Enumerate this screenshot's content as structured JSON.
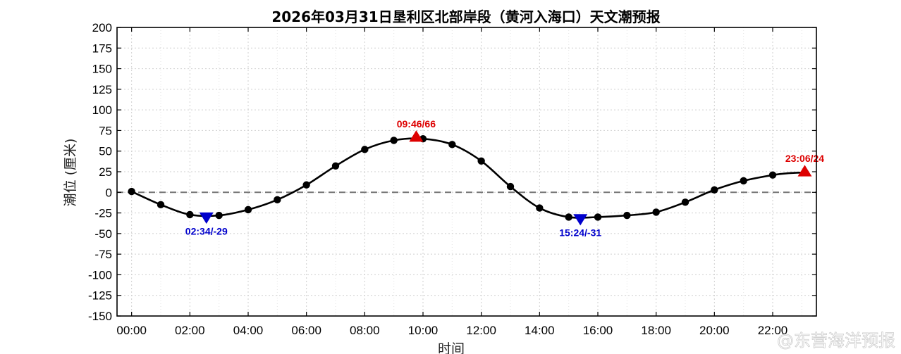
{
  "chart_data": {
    "type": "line",
    "title": "2026年03月31日垦利区北部岸段（黄河入海口）天文潮预报",
    "xlabel": "时间",
    "ylabel": "潮位 (厘米)",
    "xlim": [
      -0.5,
      23.5
    ],
    "ylim": [
      -150,
      200
    ],
    "x_ticks": [
      0,
      2,
      4,
      6,
      8,
      10,
      12,
      14,
      16,
      18,
      20,
      22
    ],
    "x_tick_labels": [
      "00:00",
      "02:00",
      "04:00",
      "06:00",
      "08:00",
      "10:00",
      "12:00",
      "14:00",
      "16:00",
      "18:00",
      "20:00",
      "22:00"
    ],
    "y_ticks": [
      200,
      175,
      150,
      125,
      100,
      75,
      50,
      25,
      0,
      -25,
      -50,
      -75,
      -100,
      -125,
      -150
    ],
    "grid": true,
    "zero_line": true,
    "series": [
      {
        "x": [
          0,
          1,
          2,
          3,
          4,
          5,
          6,
          7,
          8,
          9,
          10,
          11,
          12,
          13,
          14,
          15,
          16,
          17,
          18,
          19,
          20,
          21,
          22
        ],
        "values": [
          1,
          -15,
          -27,
          -28,
          -21,
          -9,
          9,
          32,
          52,
          63,
          65,
          58,
          38,
          7,
          -19,
          -30,
          -30,
          -28,
          -24,
          -12,
          3,
          14,
          21
        ],
        "color": "#000000"
      }
    ],
    "extrema": [
      {
        "kind": "low",
        "x": 2.567,
        "y": -29,
        "label": "02:34/-29",
        "color": "#0000cc"
      },
      {
        "kind": "high",
        "x": 9.767,
        "y": 66,
        "label": "09:46/66",
        "color": "#dd0000"
      },
      {
        "kind": "low",
        "x": 15.4,
        "y": -31,
        "label": "15:24/-31",
        "color": "#0000cc"
      },
      {
        "kind": "high",
        "x": 23.1,
        "y": 24,
        "label": "23:06/24",
        "color": "#dd0000"
      }
    ]
  },
  "watermark": "@东营海洋预报"
}
